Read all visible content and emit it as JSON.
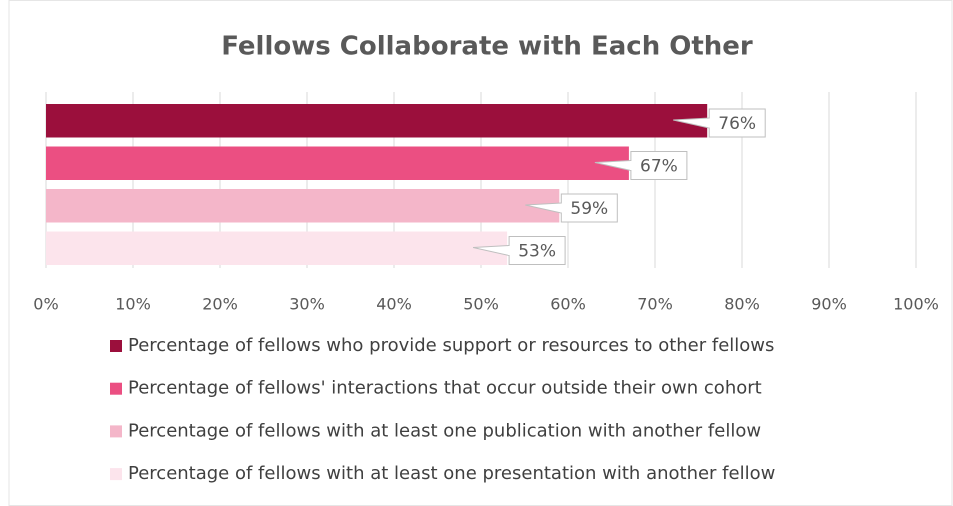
{
  "chart_data": {
    "type": "bar",
    "orientation": "horizontal",
    "title": "Fellows Collaborate with Each Other",
    "categories": [
      null
    ],
    "series": [
      {
        "name": "Percentage of fellows who provide support or resources to other fellows",
        "color": "#9b0f3c",
        "values": [
          76
        ],
        "value_labels": [
          "76%"
        ]
      },
      {
        "name": "Percentage of fellows' interactions that occur outside their own cohort",
        "color": "#eb4f82",
        "values": [
          67
        ],
        "value_labels": [
          "67%"
        ]
      },
      {
        "name": "Percentage of fellows with at least one publication with another fellow",
        "color": "#f4b6c9",
        "values": [
          59
        ],
        "value_labels": [
          "59%"
        ]
      },
      {
        "name": "Percentage of fellows with at least one presentation with another fellow",
        "color": "#fce4ec",
        "values": [
          53
        ],
        "value_labels": [
          "53%"
        ]
      }
    ],
    "xlim": [
      0,
      100
    ],
    "xticks": [
      {
        "value": 0,
        "label": "0%"
      },
      {
        "value": 10,
        "label": "10%"
      },
      {
        "value": 20,
        "label": "20%"
      },
      {
        "value": 30,
        "label": "30%"
      },
      {
        "value": 40,
        "label": "40%"
      },
      {
        "value": 50,
        "label": "50%"
      },
      {
        "value": 60,
        "label": "60%"
      },
      {
        "value": 70,
        "label": "70%"
      },
      {
        "value": 80,
        "label": "80%"
      },
      {
        "value": 90,
        "label": "90%"
      },
      {
        "value": 100,
        "label": "100%"
      }
    ],
    "grid": true,
    "legend": "bottom"
  }
}
